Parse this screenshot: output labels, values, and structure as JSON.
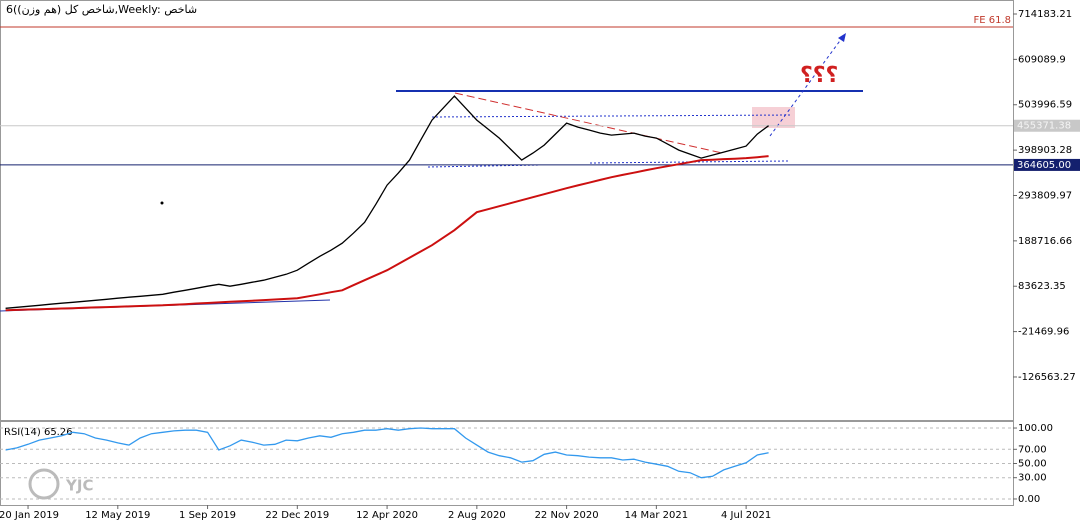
{
  "chart_data": [
    {
      "type": "line",
      "title": "6(شاخص کل (هم وزن),Weekly:  شاخص",
      "annotation": "؟؟؟",
      "watermark": "YJC",
      "categories": [
        null,
        null,
        "20 Jan 2019",
        null,
        null,
        null,
        null,
        null,
        null,
        null,
        "12 May 2019",
        null,
        null,
        null,
        null,
        null,
        null,
        null,
        "1 Sep 2019",
        null,
        null,
        null,
        null,
        null,
        null,
        null,
        "22 Dec 2019",
        null,
        null,
        null,
        null,
        null,
        null,
        null,
        "12 Apr 2020",
        null,
        null,
        null,
        null,
        null,
        null,
        null,
        "2 Aug 2020",
        null,
        null,
        null,
        null,
        null,
        null,
        null,
        "22 Nov 2020",
        null,
        null,
        null,
        null,
        null,
        null,
        null,
        "14 Mar 2021",
        null,
        null,
        null,
        null,
        null,
        null,
        null,
        "4 Jul 2021",
        null,
        null
      ],
      "series": [
        {
          "color": "#000000",
          "values": [
            32600,
            34900,
            37200,
            39500,
            41900,
            44200,
            46500,
            48800,
            51100,
            53400,
            55800,
            58100,
            60400,
            62700,
            65000,
            69700,
            74300,
            78900,
            83600,
            88200,
            83600,
            88200,
            92900,
            97500,
            104500,
            111300,
            120700,
            136900,
            152900,
            167000,
            183300,
            206500,
            231800,
            273700,
            317800,
            345600,
            375700,
            422000,
            468400,
            496300,
            524100,
            496300,
            468400,
            447600,
            426700,
            401200,
            375700,
            391900,
            410500,
            436000,
            461500,
            452200,
            445400,
            438300,
            433700,
            436000,
            438300,
            431400,
            426700,
            412800,
            398900,
            389600,
            380300,
            387300,
            394300,
            401200,
            408200,
            436000,
            455400
          ]
        },
        {
          "color": "#cc1010",
          "values": [
            27900,
            28700,
            29600,
            30400,
            31200,
            32000,
            32800,
            33700,
            34500,
            35300,
            36200,
            37000,
            37800,
            38700,
            39500,
            40800,
            42100,
            43500,
            44800,
            46200,
            47500,
            48800,
            50200,
            51500,
            52900,
            54200,
            55800,
            60400,
            65000,
            69700,
            74300,
            85900,
            97500,
            109100,
            120700,
            135200,
            149600,
            164100,
            178600,
            196000,
            213400,
            234200,
            255100,
            262100,
            269000,
            276000,
            282900,
            289900,
            296800,
            303800,
            310700,
            317100,
            323500,
            329900,
            336200,
            341500,
            346700,
            351900,
            357100,
            361700,
            366300,
            371000,
            375700,
            376800,
            378000,
            379100,
            380300,
            382600,
            385000
          ]
        }
      ],
      "ylim": [
        -226250,
        742003
      ],
      "yticks": [
        714183.21,
        609089.9,
        503996.59,
        398903.28,
        293809.97,
        188716.66,
        83623.35,
        -21469.96,
        -126563.27
      ],
      "levels": [
        {
          "label": "FE 61.8",
          "value": 684000,
          "color": "#c0392b"
        }
      ],
      "price_marks": [
        {
          "value": 455371.38,
          "color": "#c8c8c8"
        },
        {
          "value": 364605,
          "label": "364605.00",
          "color": "#14206e"
        }
      ]
    },
    {
      "type": "line",
      "title": "RSI(14) 65.26",
      "series": [
        {
          "color": "#3399ee",
          "values": [
            69,
            72,
            77,
            83,
            86,
            89,
            94,
            92,
            86,
            83,
            79,
            76,
            86,
            92,
            94,
            96,
            97,
            97,
            94,
            69,
            75,
            83,
            80,
            76,
            77,
            83,
            82,
            86,
            89,
            87,
            92,
            94,
            97,
            97,
            99,
            97,
            99,
            100,
            99,
            99,
            99,
            86,
            76,
            66,
            61,
            58,
            52,
            54,
            63,
            66,
            62,
            61,
            59,
            58,
            58,
            55,
            56,
            52,
            49,
            46,
            39,
            37,
            30,
            32,
            41,
            46,
            51,
            62,
            65.26
          ]
        }
      ],
      "ylim": [
        -8.5,
        108.5
      ],
      "yticks": [
        {
          "value": 100,
          "label": "100.00"
        },
        {
          "value": 70,
          "label": "70.00"
        },
        {
          "value": 50,
          "label": "50.00"
        },
        {
          "value": 30,
          "label": "30.00"
        },
        {
          "value": 0,
          "label": "0.00"
        }
      ],
      "grid": true
    }
  ]
}
